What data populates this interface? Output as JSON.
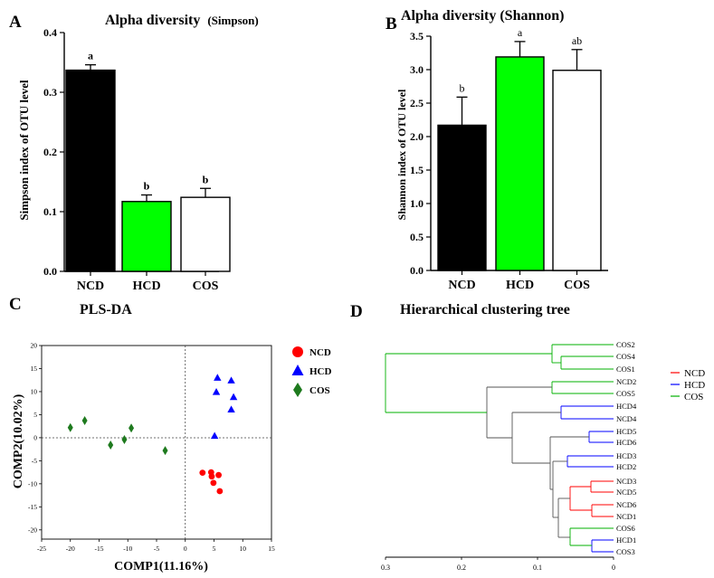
{
  "panels": {
    "A": {
      "letter": "A",
      "title": "Alpha diversity",
      "title_suffix": "(Simpson)"
    },
    "B": {
      "letter": "B",
      "title": "Alpha diversity (Shannon)"
    },
    "C": {
      "letter": "C",
      "title": "PLS-DA"
    },
    "D": {
      "letter": "D",
      "title": "Hierarchical clustering tree"
    }
  },
  "colors": {
    "NCD": "#ff0000",
    "HCD": "#0000ff",
    "COS": "#00b000",
    "bar_hcd": "#00ff00",
    "diamond": "#1e7a1e",
    "tree_black": "#555555"
  },
  "chart_data": [
    {
      "type": "bar",
      "title": "Alpha diversity (Simpson)",
      "ylabel": "Simpson index of OTU level",
      "categories": [
        "NCD",
        "HCD",
        "COS"
      ],
      "values": [
        0.337,
        0.117,
        0.124
      ],
      "errors": [
        0.009,
        0.011,
        0.015
      ],
      "letters": [
        "a",
        "b",
        "b"
      ],
      "bar_colors": [
        "#000000",
        "#00ff00",
        "#ffffff"
      ],
      "ylim": [
        0,
        0.4
      ],
      "yticks": [
        "0.0",
        "0.1",
        "0.2",
        "0.3",
        "0.4"
      ]
    },
    {
      "type": "bar",
      "title": "Alpha diversity (Shannon)",
      "ylabel": "Shannon index of OTU level",
      "categories": [
        "NCD",
        "HCD",
        "COS"
      ],
      "values": [
        2.17,
        3.19,
        2.99
      ],
      "errors": [
        0.42,
        0.23,
        0.31
      ],
      "letters": [
        "b",
        "a",
        "ab"
      ],
      "bar_colors": [
        "#000000",
        "#00ff00",
        "#ffffff"
      ],
      "ylim": [
        0,
        3.5
      ],
      "yticks": [
        "0.0",
        "0.5",
        "1.0",
        "1.5",
        "2.0",
        "2.5",
        "3.0",
        "3.5"
      ]
    },
    {
      "type": "scatter",
      "title": "PLS-DA",
      "xlabel": "COMP1(11.16%)",
      "ylabel": "COMP2(10.02%)",
      "xlim": [
        -25,
        15
      ],
      "ylim": [
        -22,
        20
      ],
      "xticks": [
        "-25",
        "-20",
        "-15",
        "-10",
        "-5",
        "0",
        "5",
        "10",
        "15"
      ],
      "yticks": [
        "20",
        "15",
        "10",
        "5",
        "0",
        "-5",
        "-10",
        "-15",
        "-20"
      ],
      "legend": [
        "NCD",
        "HCD",
        "COS"
      ],
      "series": [
        {
          "name": "NCD",
          "marker": "circle",
          "points": [
            [
              3,
              -7.6
            ],
            [
              4.5,
              -7.5
            ],
            [
              4.6,
              -8.4
            ],
            [
              5.8,
              -8.1
            ],
            [
              4.9,
              -9.8
            ],
            [
              6,
              -11.6
            ]
          ]
        },
        {
          "name": "HCD",
          "marker": "triangle",
          "points": [
            [
              5.6,
              13
            ],
            [
              8,
              12.4
            ],
            [
              5.4,
              9.9
            ],
            [
              8.4,
              8.8
            ],
            [
              8,
              6.1
            ],
            [
              5.1,
              0.4
            ]
          ]
        },
        {
          "name": "COS",
          "marker": "diamond",
          "points": [
            [
              -20,
              2.2
            ],
            [
              -17.5,
              3.7
            ],
            [
              -13,
              -1.6
            ],
            [
              -10.6,
              -0.4
            ],
            [
              -9.4,
              2.1
            ],
            [
              -3.5,
              -2.8
            ]
          ]
        }
      ]
    },
    {
      "type": "dendrogram",
      "title": "Hierarchical clustering tree",
      "legend": [
        "NCD",
        "HCD",
        "COS"
      ],
      "xticks": [
        "0.3",
        "0.2",
        "0.1",
        "0"
      ],
      "leaves": [
        "COS2",
        "COS4",
        "COS1",
        "NCD2",
        "COS5",
        "HCD4",
        "NCD4",
        "HCD5",
        "HCD6",
        "HCD3",
        "HCD2",
        "NCD3",
        "NCD5",
        "NCD6",
        "NCD1",
        "COS6",
        "HCD1",
        "COS3"
      ]
    }
  ]
}
